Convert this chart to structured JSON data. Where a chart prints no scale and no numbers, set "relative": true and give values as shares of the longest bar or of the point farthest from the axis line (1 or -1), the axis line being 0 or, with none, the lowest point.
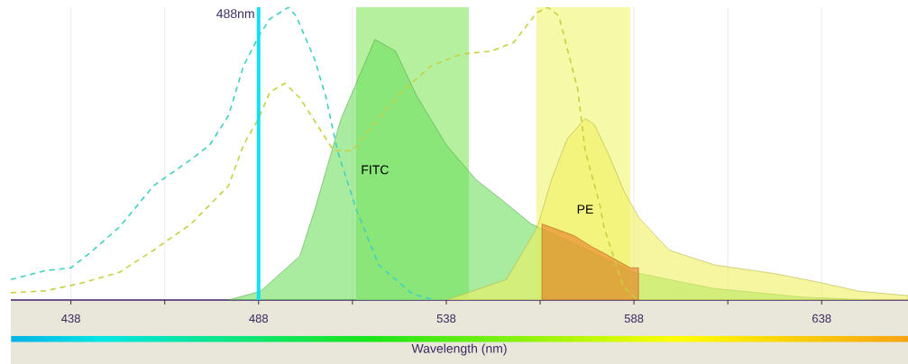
{
  "chart_data": {
    "type": "area",
    "relative": true,
    "xlabel": "Wavelength (nm)",
    "xlim": [
      422,
      661
    ],
    "xticks": [
      438,
      {
        "value": 463,
        "label": null
      },
      488,
      {
        "value": 513,
        "label": null
      },
      538,
      {
        "value": 563,
        "label": null
      },
      588,
      {
        "value": 613,
        "label": null
      },
      638
    ],
    "grid": true,
    "bands": [
      {
        "axis": "x",
        "from": 514,
        "to": 544,
        "color": "#b4f09e"
      },
      {
        "axis": "x",
        "from": 562,
        "to": 587,
        "color": "#f6f9a8"
      }
    ],
    "ref_lines": [
      {
        "axis": "x",
        "value": 488,
        "label": "488nm",
        "color": "#10e0f0"
      }
    ],
    "series": [
      {
        "name": "FITC",
        "color": "#70e060",
        "x": [
          480,
          488.5,
          499,
          503,
          510,
          519,
          524.5,
          530,
          538,
          546,
          553,
          560.6,
          572.6,
          587.8,
          609,
          633,
          651.5
        ],
        "values": [
          0,
          0.03,
          0.15,
          0.31,
          0.62,
          0.89,
          0.85,
          0.7,
          0.53,
          0.41,
          0.34,
          0.26,
          0.19,
          0.095,
          0.04,
          0.01,
          0
        ]
      },
      {
        "name": "PE",
        "type": "area",
        "color": "#f0f060",
        "x": [
          538,
          554,
          562.3,
          566,
          570.2,
          575,
          577.4,
          581.5,
          585.4,
          589.4,
          597.4,
          609.4,
          625.5,
          637.5,
          648,
          661
        ],
        "values": [
          0,
          0.07,
          0.25,
          0.41,
          0.55,
          0.62,
          0.6,
          0.49,
          0.37,
          0.28,
          0.17,
          0.12,
          0.09,
          0.06,
          0.03,
          0.015
        ]
      },
      {
        "type": "area",
        "color": "#e87a22",
        "x": [
          563.5,
          572,
          577,
          580,
          587,
          589.2
        ],
        "values": [
          0.26,
          0.22,
          0.18,
          0.16,
          0.11,
          0.11
        ]
      },
      {
        "type": "line",
        "line_style": "dashed",
        "color": "#40d0c0",
        "x": [
          422,
          431,
          438,
          443,
          451,
          460,
          470,
          475,
          480,
          484,
          488,
          491,
          496,
          498,
          503,
          506,
          509,
          514,
          520,
          529,
          535
        ],
        "values": [
          0.07,
          0.1,
          0.11,
          0.16,
          0.25,
          0.39,
          0.48,
          0.53,
          0.63,
          0.8,
          0.9,
          0.96,
          1.0,
          0.97,
          0.82,
          0.69,
          0.51,
          0.31,
          0.12,
          0.02,
          0
        ]
      },
      {
        "type": "line",
        "line_style": "dashed",
        "color": "#c8d040",
        "x": [
          422,
          431,
          440,
          451,
          460,
          470,
          480,
          484,
          488,
          491,
          495,
          499,
          508,
          513,
          518,
          526,
          534,
          542,
          550,
          556,
          562,
          565,
          568,
          573,
          575,
          579,
          580,
          585,
          589
        ],
        "values": [
          0.025,
          0.031,
          0.055,
          0.095,
          0.17,
          0.26,
          0.39,
          0.53,
          0.62,
          0.71,
          0.74,
          0.69,
          0.51,
          0.51,
          0.59,
          0.71,
          0.8,
          0.84,
          0.85,
          0.88,
          0.98,
          1.0,
          0.97,
          0.72,
          0.51,
          0.32,
          0.25,
          0.05,
          0
        ]
      }
    ]
  }
}
